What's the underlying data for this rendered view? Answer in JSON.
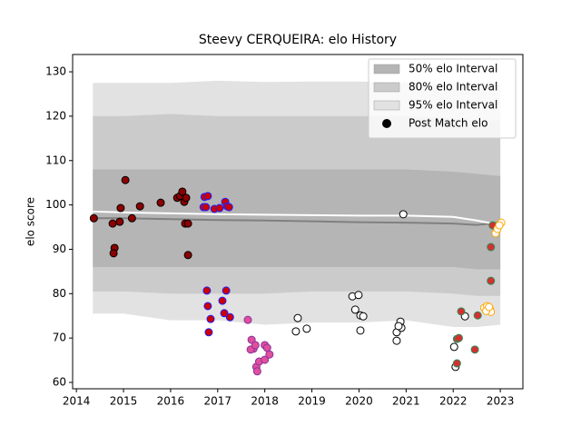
{
  "chart_data": {
    "type": "scatter",
    "title": "Steevy CERQUEIRA: elo History",
    "y_label": "elo score",
    "xlim": [
      2013.92,
      2023.48
    ],
    "ylim": [
      58.57,
      133.9
    ],
    "xticks": [
      2014,
      2015,
      2016,
      2017,
      2018,
      2019,
      2020,
      2021,
      2022,
      2023
    ],
    "yticks": [
      60,
      70,
      80,
      90,
      100,
      110,
      120,
      130
    ],
    "legend": "upper right",
    "bands": {
      "x": [
        2014.35,
        2015,
        2016,
        2017,
        2018,
        2019,
        2020,
        2021,
        2022,
        2022.5,
        2023
      ],
      "series": [
        {
          "name": "95% elo Interval",
          "color": "#e2e2e2",
          "upper": [
            127.5,
            127.5,
            127.5,
            128,
            127.7,
            127.8,
            127.8,
            127.6,
            127.4,
            127.4,
            127.4
          ],
          "lower": [
            75.5,
            75.5,
            74,
            74,
            73,
            73.5,
            73.5,
            74,
            72.5,
            72.5,
            73
          ]
        },
        {
          "name": "80% elo Interval",
          "color": "#cbcbcb",
          "upper": [
            120,
            120,
            120.5,
            120,
            120,
            120,
            120,
            120,
            119.5,
            119,
            119
          ],
          "lower": [
            80.5,
            80.5,
            80,
            80,
            80,
            80.5,
            80.5,
            80.5,
            80,
            79.5,
            79.5
          ]
        },
        {
          "name": "50% elo Interval",
          "color": "#b5b5b5",
          "upper": [
            108,
            108,
            108,
            108,
            108,
            108,
            108,
            108,
            107.5,
            107,
            106.5
          ],
          "lower": [
            86,
            86,
            86,
            86,
            86,
            86,
            86,
            86,
            86,
            85.5,
            85.5
          ]
        }
      ],
      "lines": [
        {
          "color": "#808080",
          "values": [
            97,
            97,
            96.8,
            96.6,
            96.5,
            96.3,
            96.1,
            96,
            95.8,
            95.5,
            96
          ]
        },
        {
          "color": "#ffffff",
          "values": [
            98.5,
            98.3,
            98.1,
            97.9,
            97.8,
            97.7,
            97.6,
            97.6,
            97.3,
            96.5,
            95.5
          ]
        }
      ]
    },
    "points": {
      "name": "Post Match elo",
      "color": "#000000",
      "groups": [
        {
          "color": "#8b0000",
          "edgecolor": "#000000",
          "x": [
            2014.37,
            2014.77,
            2014.81,
            2014.79,
            2014.94,
            2014.92,
            2015.04,
            2015.18,
            2015.35,
            2015.79,
            2016.14,
            2016.2,
            2016.25,
            2016.29,
            2016.33,
            2016.31,
            2016.37,
            2016.37
          ],
          "values": [
            97.0,
            95.8,
            90.3,
            89.1,
            99.3,
            96.2,
            105.6,
            97.0,
            99.7,
            100.5,
            101.6,
            102,
            103,
            100.7,
            101.6,
            95.8,
            95.8,
            88.7
          ]
        },
        {
          "color": "#cc0000",
          "edgecolor": "#1f1fff",
          "x": [
            2016.72,
            2016.79,
            2016.7,
            2016.75,
            2016.93,
            2017.04,
            2017.16,
            2017.2,
            2017.24,
            2016.77,
            2017.18,
            2016.79,
            2017.1,
            2016.85,
            2017.14,
            2017.26,
            2016.81
          ],
          "values": [
            101.8,
            102,
            99.5,
            99.5,
            99.1,
            99.3,
            100.7,
            99.7,
            99.5,
            80.7,
            80.7,
            77.2,
            78.4,
            74.3,
            75.6,
            74.7,
            71.3
          ]
        },
        {
          "color": "#e0509a",
          "edgecolor": "#8b2fa0",
          "x": [
            2017.64,
            2017.72,
            2017.76,
            2017.7,
            2017.8,
            2017.82,
            2017.84,
            2017.88,
            2018.0,
            2018.0,
            2018.05,
            2018.1
          ],
          "values": [
            74.1,
            69.6,
            67.6,
            67.4,
            68.4,
            63.5,
            62.5,
            64.7,
            65.1,
            68.4,
            67.8,
            66.3
          ]
        },
        {
          "color": "#ffffff",
          "edgecolor": "#000000",
          "x": [
            2018.7,
            2018.66,
            2018.89,
            2019.86,
            2019.99,
            2019.92,
            2020.03,
            2020.09,
            2020.03,
            2020.8,
            2020.8,
            2020.88,
            2020.9,
            2020.84,
            2020.94,
            2022.02,
            2022.05,
            2022.25
          ],
          "values": [
            74.5,
            71.5,
            72.1,
            79.4,
            79.7,
            76.4,
            75.1,
            74.9,
            71.7,
            71.3,
            69.4,
            73.7,
            72.3,
            72.7,
            97.9,
            68.0,
            63.5,
            74.9
          ]
        },
        {
          "color": "#d43030",
          "edgecolor": "#2e8b57",
          "x": [
            2022.08,
            2022.12,
            2022.08,
            2022.17,
            2022.52,
            2022.46,
            2022.8,
            2022.8,
            2022.84
          ],
          "values": [
            69.8,
            70,
            64.3,
            76,
            75.1,
            67.4,
            90.5,
            82.9,
            95.4
          ]
        },
        {
          "color": "#ffffff",
          "edgecolor": "#ffa500",
          "x": [
            2022.66,
            2022.72,
            2022.78,
            2022.8,
            2022.7,
            2022.76,
            2022.9,
            2022.94,
            2023.02,
            2022.98
          ],
          "values": [
            76.8,
            77.2,
            76.5,
            75.9,
            76.1,
            77.0,
            93.6,
            94.6,
            96.0,
            95.4
          ]
        }
      ]
    }
  }
}
